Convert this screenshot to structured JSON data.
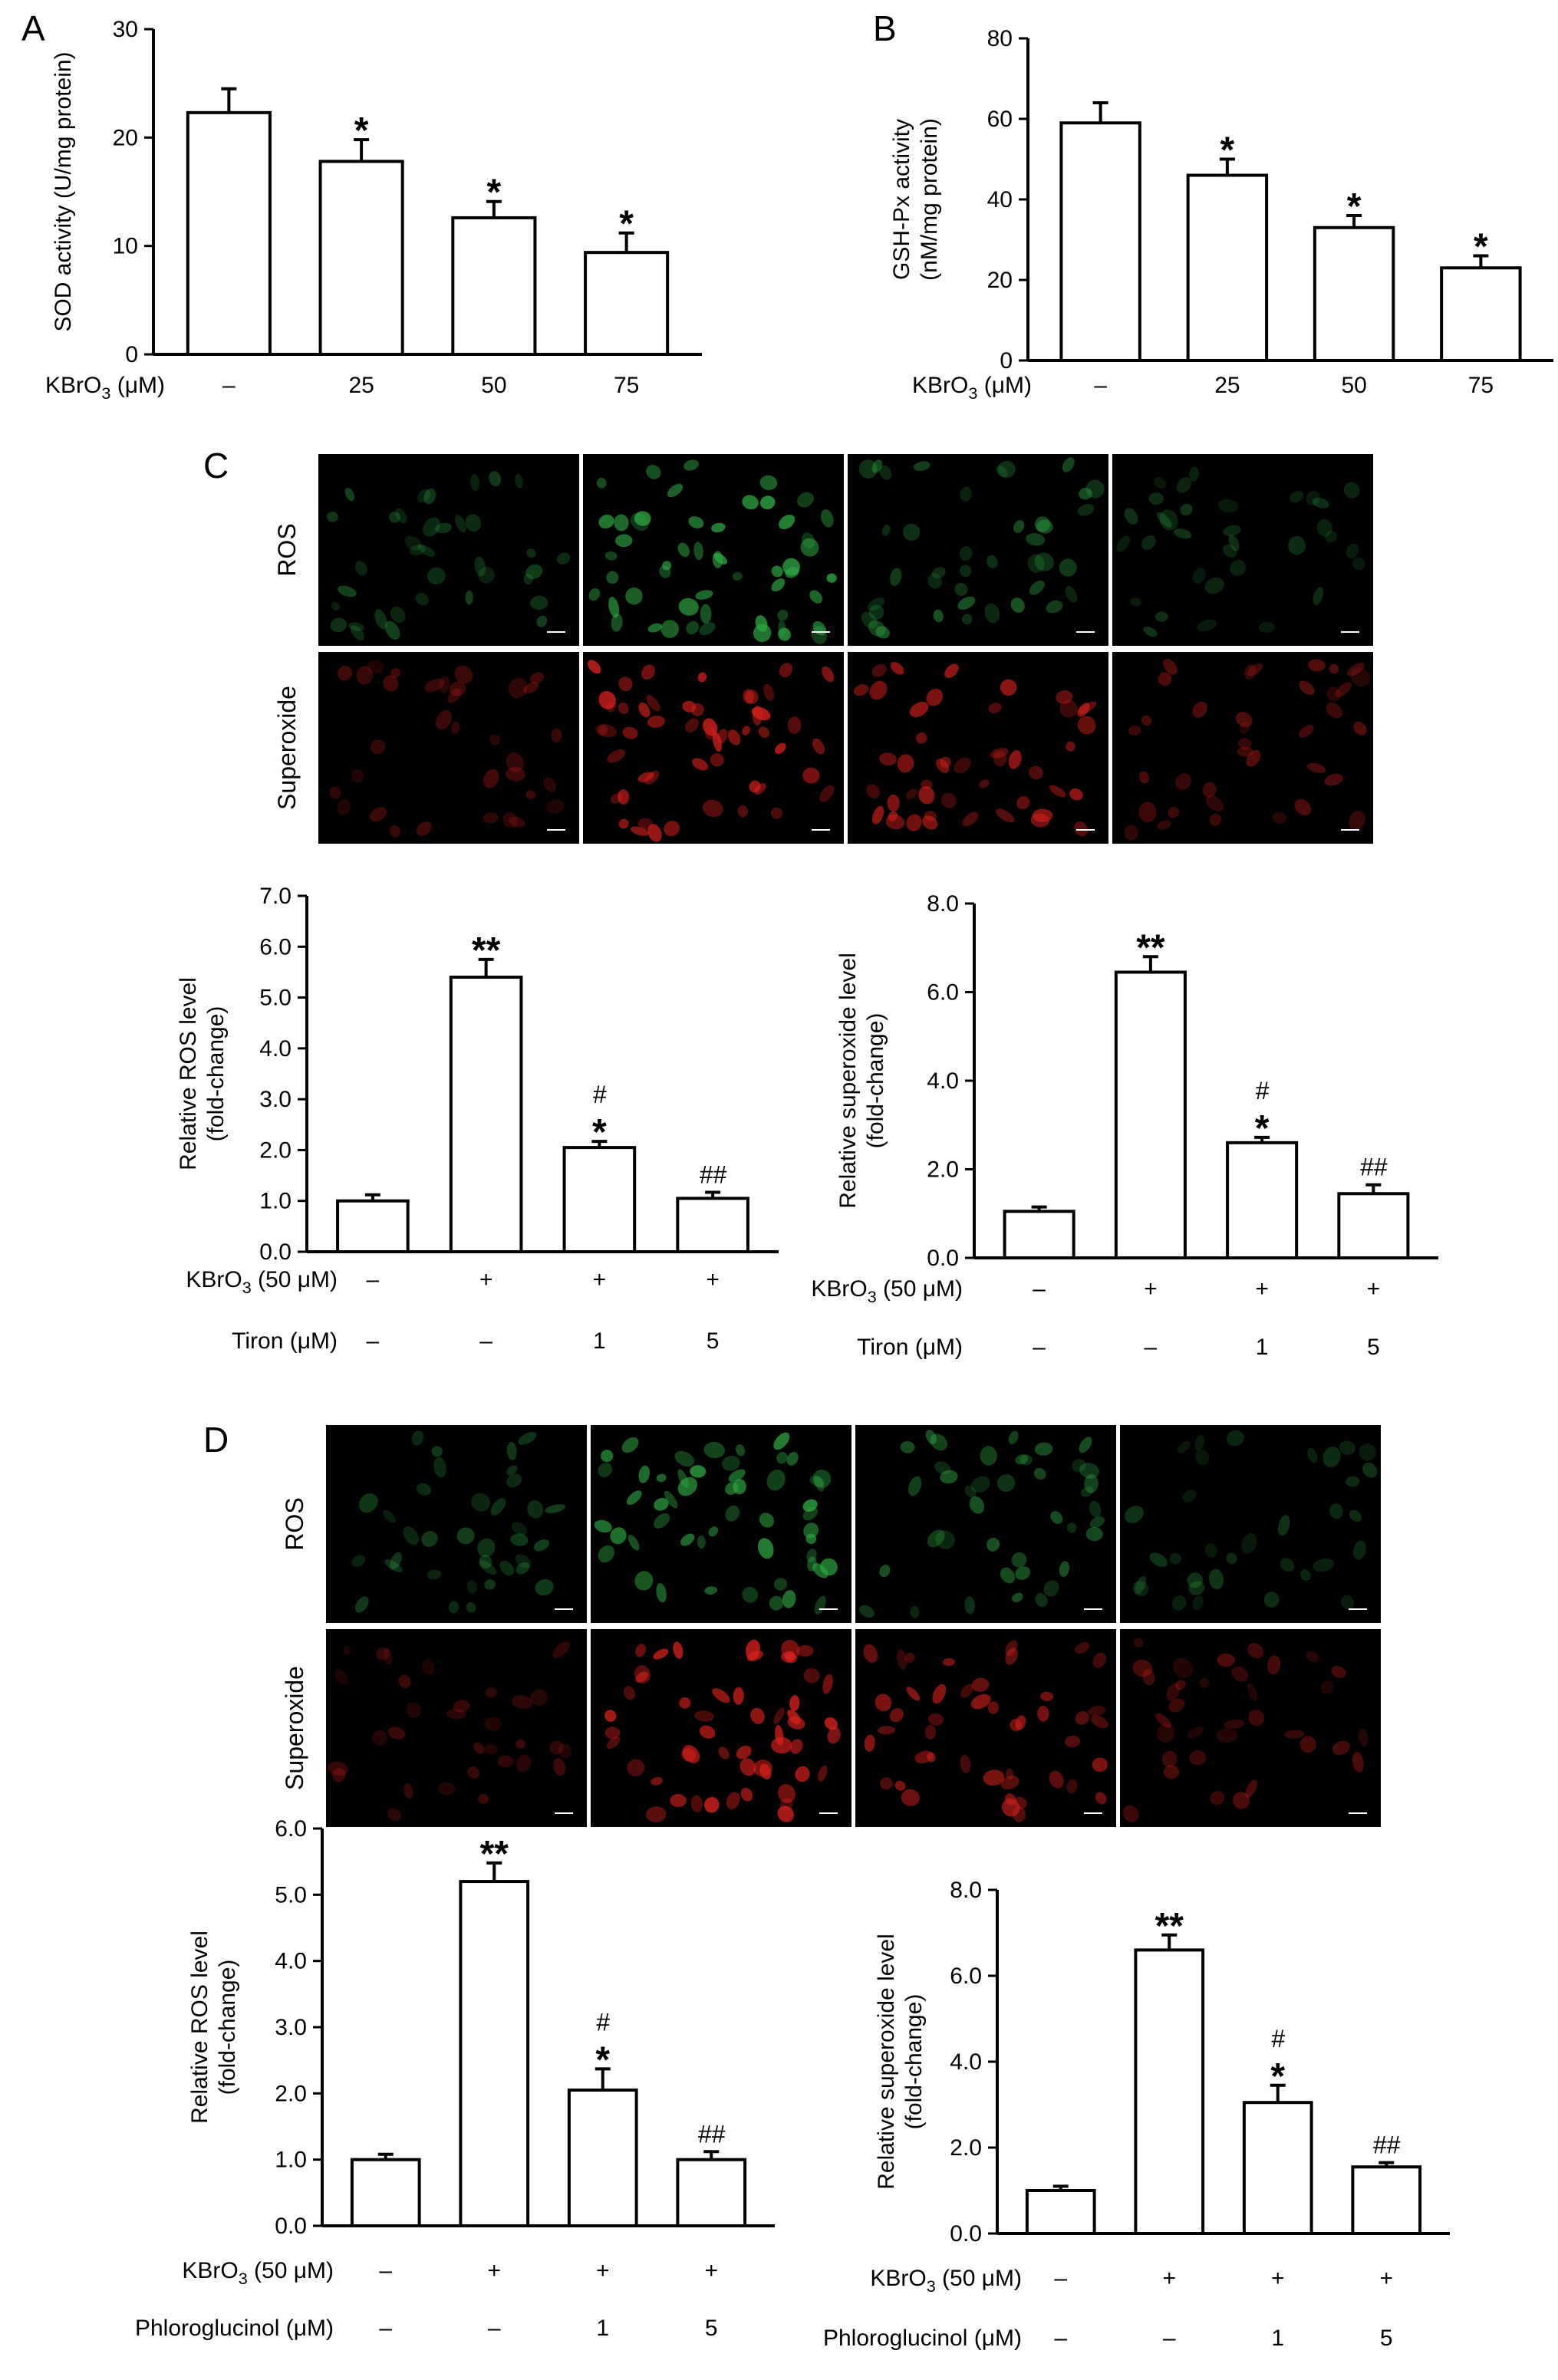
{
  "panels": {
    "A": {
      "label": "A"
    },
    "B": {
      "label": "B"
    },
    "C": {
      "label": "C",
      "row_labels": [
        "ROS",
        "Superoxide"
      ],
      "scale_bar": "50 μm"
    },
    "D": {
      "label": "D",
      "row_labels": [
        "ROS",
        "Superoxide"
      ],
      "scale_bar": "50 μm"
    }
  },
  "colors": {
    "ros_green": "#2fa843",
    "superoxide_red": "#d8211c",
    "bar_fill": "#ffffff",
    "bar_stroke": "#000000"
  },
  "chart_data": [
    {
      "id": "A",
      "type": "bar",
      "ylabel": "SOD activity (U/mg protein)",
      "ylim": [
        0,
        30
      ],
      "yticks": [
        "0",
        "10",
        "20",
        "30"
      ],
      "categories": [
        "–",
        "25",
        "50",
        "75"
      ],
      "values": [
        22.3,
        17.8,
        12.6,
        9.4
      ],
      "errors": [
        2.2,
        2.0,
        1.5,
        1.8
      ],
      "significance": [
        "",
        "*",
        "*",
        "*"
      ],
      "treatment_rows": [
        {
          "label": "KBrO3 (μM)",
          "values": [
            "–",
            "25",
            "50",
            "75"
          ]
        }
      ]
    },
    {
      "id": "B",
      "type": "bar",
      "ylabel": "GSH-Px activity (nM/mg protein)",
      "ylim": [
        0,
        80
      ],
      "yticks": [
        "0",
        "20",
        "40",
        "60",
        "80"
      ],
      "categories": [
        "–",
        "25",
        "50",
        "75"
      ],
      "values": [
        59,
        46,
        33,
        23
      ],
      "errors": [
        5,
        4,
        3,
        3
      ],
      "significance": [
        "",
        "*",
        "*",
        "*"
      ],
      "treatment_rows": [
        {
          "label": "KBrO3 (μM)",
          "values": [
            "–",
            "25",
            "50",
            "75"
          ]
        }
      ]
    },
    {
      "id": "C-ros",
      "type": "bar",
      "ylabel": "Relative ROS level (fold-change)",
      "ylim": [
        0,
        7
      ],
      "yticks": [
        "0.0",
        "1.0",
        "2.0",
        "3.0",
        "4.0",
        "5.0",
        "6.0",
        "7.0"
      ],
      "values": [
        1.0,
        5.4,
        2.05,
        1.05
      ],
      "errors": [
        0.12,
        0.35,
        0.12,
        0.12
      ],
      "significance": [
        "",
        "**",
        "#\n*",
        "##"
      ],
      "treatment_rows": [
        {
          "label": "KBrO3 (50 μM)",
          "values": [
            "–",
            "+",
            "+",
            "+"
          ]
        },
        {
          "label": "Tiron (μM)",
          "values": [
            "–",
            "–",
            "1",
            "5"
          ]
        }
      ]
    },
    {
      "id": "C-superoxide",
      "type": "bar",
      "ylabel": "Relative superoxide level (fold-change)",
      "ylim": [
        0,
        8
      ],
      "yticks": [
        "0.0",
        "2.0",
        "4.0",
        "6.0",
        "8.0"
      ],
      "values": [
        1.05,
        6.45,
        2.6,
        1.45
      ],
      "errors": [
        0.1,
        0.35,
        0.12,
        0.2
      ],
      "significance": [
        "",
        "**",
        "#\n*",
        "##"
      ],
      "treatment_rows": [
        {
          "label": "KBrO3 (50 μM)",
          "values": [
            "–",
            "+",
            "+",
            "+"
          ]
        },
        {
          "label": "Tiron (μM)",
          "values": [
            "–",
            "–",
            "1",
            "5"
          ]
        }
      ]
    },
    {
      "id": "D-ros",
      "type": "bar",
      "ylabel": "Relative ROS level (fold-change)",
      "ylim": [
        0,
        6
      ],
      "yticks": [
        "0.0",
        "1.0",
        "2.0",
        "3.0",
        "4.0",
        "5.0",
        "6.0"
      ],
      "values": [
        1.0,
        5.2,
        2.05,
        1.0
      ],
      "errors": [
        0.08,
        0.28,
        0.32,
        0.12
      ],
      "significance": [
        "",
        "**",
        "#\n*",
        "##"
      ],
      "treatment_rows": [
        {
          "label": "KBrO3 (50 μM)",
          "values": [
            "–",
            "+",
            "+",
            "+"
          ]
        },
        {
          "label": "Phloroglucinol (μM)",
          "values": [
            "–",
            "–",
            "1",
            "5"
          ]
        }
      ]
    },
    {
      "id": "D-superoxide",
      "type": "bar",
      "ylabel": "Relative superoxide level (fold-change)",
      "ylim": [
        0,
        8
      ],
      "yticks": [
        "0.0",
        "2.0",
        "4.0",
        "6.0",
        "8.0"
      ],
      "values": [
        1.0,
        6.6,
        3.05,
        1.55
      ],
      "errors": [
        0.1,
        0.35,
        0.4,
        0.1
      ],
      "significance": [
        "",
        "**",
        "#\n*",
        "##"
      ],
      "treatment_rows": [
        {
          "label": "KBrO3 (50 μM)",
          "values": [
            "–",
            "+",
            "+",
            "+"
          ]
        },
        {
          "label": "Phloroglucinol (μM)",
          "values": [
            "–",
            "–",
            "1",
            "5"
          ]
        }
      ]
    }
  ],
  "micrographs": {
    "C": {
      "ros_intensity": [
        0.45,
        1.0,
        0.6,
        0.35
      ],
      "superoxide_intensity": [
        0.35,
        1.0,
        0.8,
        0.45
      ]
    },
    "D": {
      "ros_intensity": [
        0.45,
        1.0,
        0.6,
        0.35
      ],
      "superoxide_intensity": [
        0.3,
        1.0,
        0.75,
        0.4
      ]
    }
  }
}
